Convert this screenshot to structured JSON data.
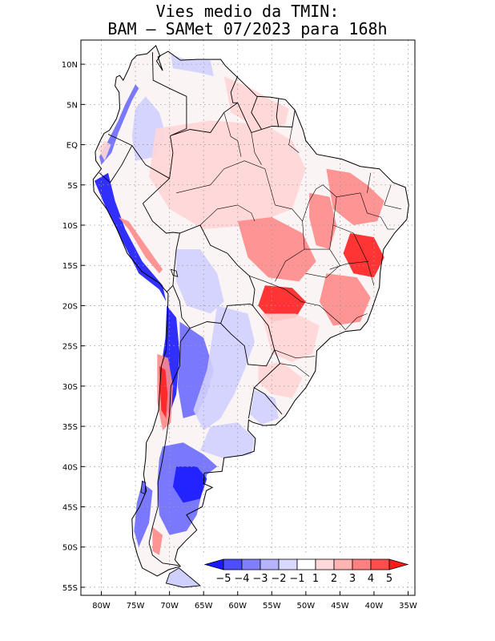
{
  "title": {
    "line1": "Vies medio da TMIN:",
    "line2": "BAM – SAMet 07/2023  para 168h"
  },
  "map": {
    "lon_range": [
      -83,
      -34
    ],
    "lat_range": [
      -56,
      13
    ],
    "lat_ticks": [
      "10N",
      "5N",
      "EQ",
      "5S",
      "10S",
      "15S",
      "20S",
      "25S",
      "30S",
      "35S",
      "40S",
      "45S",
      "50S",
      "55S"
    ],
    "lat_values": [
      10,
      5,
      0,
      -5,
      -10,
      -15,
      -20,
      -25,
      -30,
      -35,
      -40,
      -45,
      -50,
      -55
    ],
    "lon_ticks": [
      "80W",
      "75W",
      "70W",
      "65W",
      "60W",
      "55W",
      "50W",
      "45W",
      "40W",
      "35W"
    ],
    "lon_values": [
      -80,
      -75,
      -70,
      -65,
      -60,
      -55,
      -50,
      -45,
      -40,
      -35
    ]
  },
  "colorbar": {
    "labels": [
      "−5",
      "−4",
      "−3",
      "−2",
      "−1",
      "1",
      "2",
      "3",
      "4",
      "5"
    ],
    "colors": [
      "#1a1aff",
      "#4d4dff",
      "#8080ff",
      "#b3b3ff",
      "#d9d9ff",
      "#ffffff",
      "#ffd9d9",
      "#ffb3b3",
      "#ff8080",
      "#ff4d4d",
      "#ff1a1a"
    ]
  },
  "colors": {
    "strong_cold": "#1a1aff",
    "cold": "#6b6bff",
    "mild_cold": "#d0d0ff",
    "mild_warm": "#ffd6d6",
    "warm": "#ff8a8a",
    "strong_warm": "#ff2020"
  }
}
